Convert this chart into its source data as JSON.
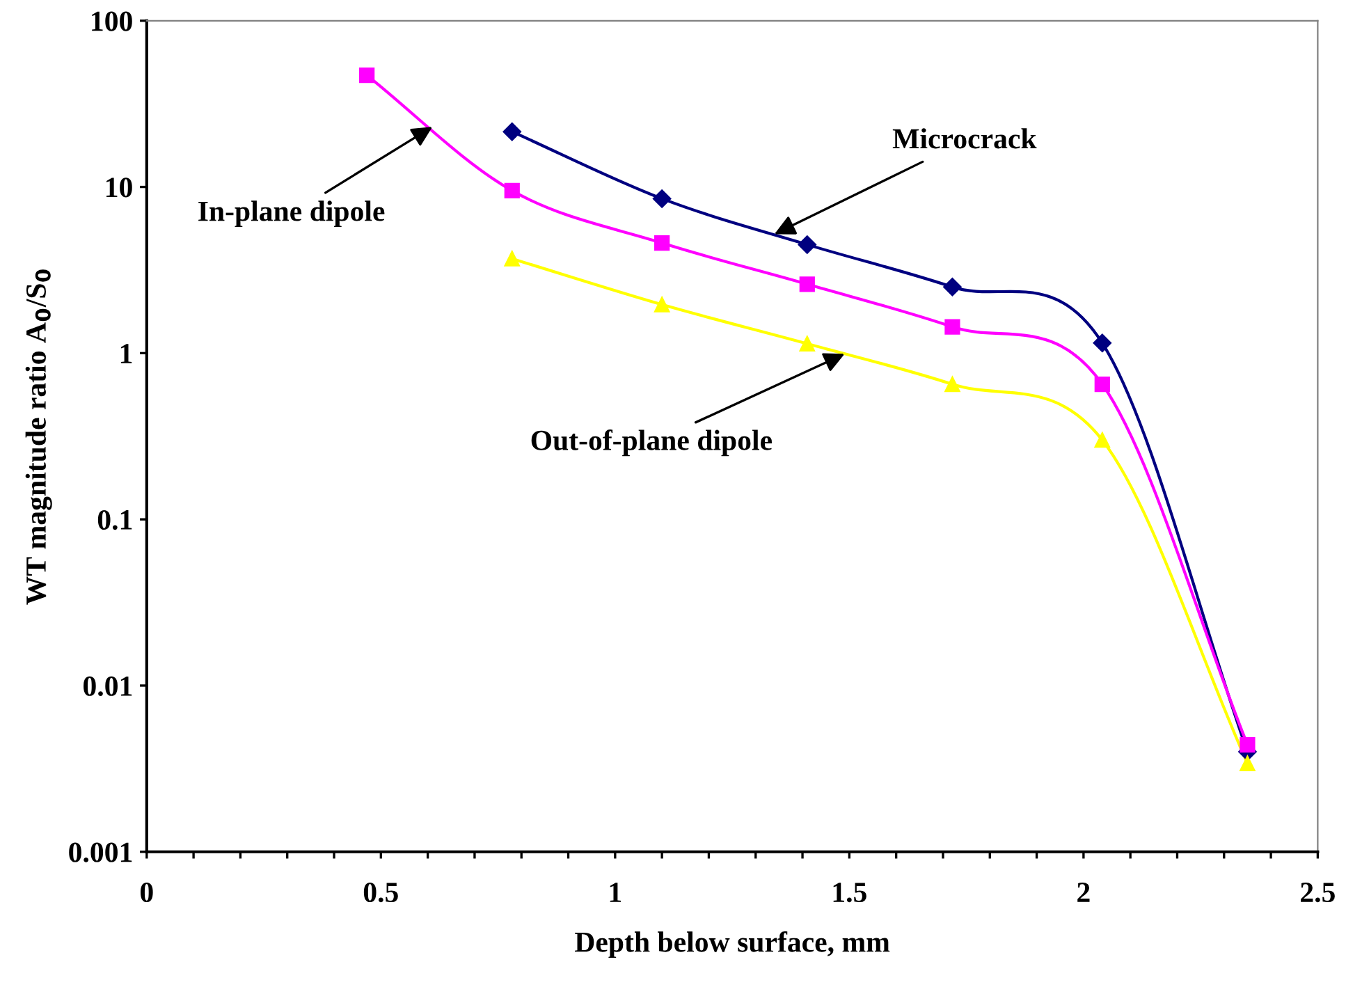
{
  "chart_data": {
    "type": "line",
    "xlabel": "Depth below surface, mm",
    "ylabel": "WT magnitude ratio A$_{0}$/S$_{0}$",
    "log": "y",
    "xlim": [
      0,
      2.5
    ],
    "ylim": [
      0.001,
      100
    ],
    "xticks": [
      0,
      {
        "value": 0.1,
        "label": null
      },
      {
        "value": 0.2,
        "label": null
      },
      {
        "value": 0.3,
        "label": null
      },
      {
        "value": 0.4,
        "label": null
      },
      0.5,
      {
        "value": 0.6,
        "label": null
      },
      {
        "value": 0.7,
        "label": null
      },
      {
        "value": 0.8,
        "label": null
      },
      {
        "value": 0.9,
        "label": null
      },
      1,
      {
        "value": 1.1,
        "label": null
      },
      {
        "value": 1.2,
        "label": null
      },
      {
        "value": 1.3,
        "label": null
      },
      {
        "value": 1.4,
        "label": null
      },
      1.5,
      {
        "value": 1.6,
        "label": null
      },
      {
        "value": 1.7,
        "label": null
      },
      {
        "value": 1.8,
        "label": null
      },
      {
        "value": 1.9,
        "label": null
      },
      2,
      {
        "value": 2.1,
        "label": null
      },
      {
        "value": 2.2,
        "label": null
      },
      {
        "value": 2.3,
        "label": null
      },
      {
        "value": 2.4,
        "label": null
      },
      2.5
    ],
    "yticks": [
      0.001,
      0.01,
      0.1,
      1,
      10,
      100
    ],
    "grid": false,
    "legend": false,
    "line_style": "solid",
    "series": [
      {
        "color": "#000080",
        "marker": "diamond",
        "x": [
          0.78,
          1.1,
          1.41,
          1.72,
          2.04,
          2.35
        ],
        "values": [
          21.5,
          8.5,
          4.5,
          2.5,
          1.15,
          0.004
        ]
      },
      {
        "color": "#ff00ff",
        "marker": "square",
        "x": [
          0.47,
          0.78,
          1.1,
          1.41,
          1.72,
          2.04,
          2.35
        ],
        "values": [
          47,
          9.5,
          4.6,
          2.6,
          1.44,
          0.65,
          0.0044
        ]
      },
      {
        "color": "#ffff00",
        "marker": "triangle",
        "x": [
          0.78,
          1.1,
          1.41,
          1.72,
          2.04,
          2.35
        ],
        "values": [
          3.7,
          1.96,
          1.14,
          0.65,
          0.3,
          0.0034
        ]
      }
    ],
    "annotations": [
      {
        "text": "Microcrack",
        "x": 1.34,
        "y": 5.2
      },
      {
        "text": "In-plane dipole",
        "x": 0.61,
        "y": 23
      },
      {
        "text": "Out-of-plane dipole",
        "x": 1.49,
        "y": 0.99
      }
    ]
  }
}
